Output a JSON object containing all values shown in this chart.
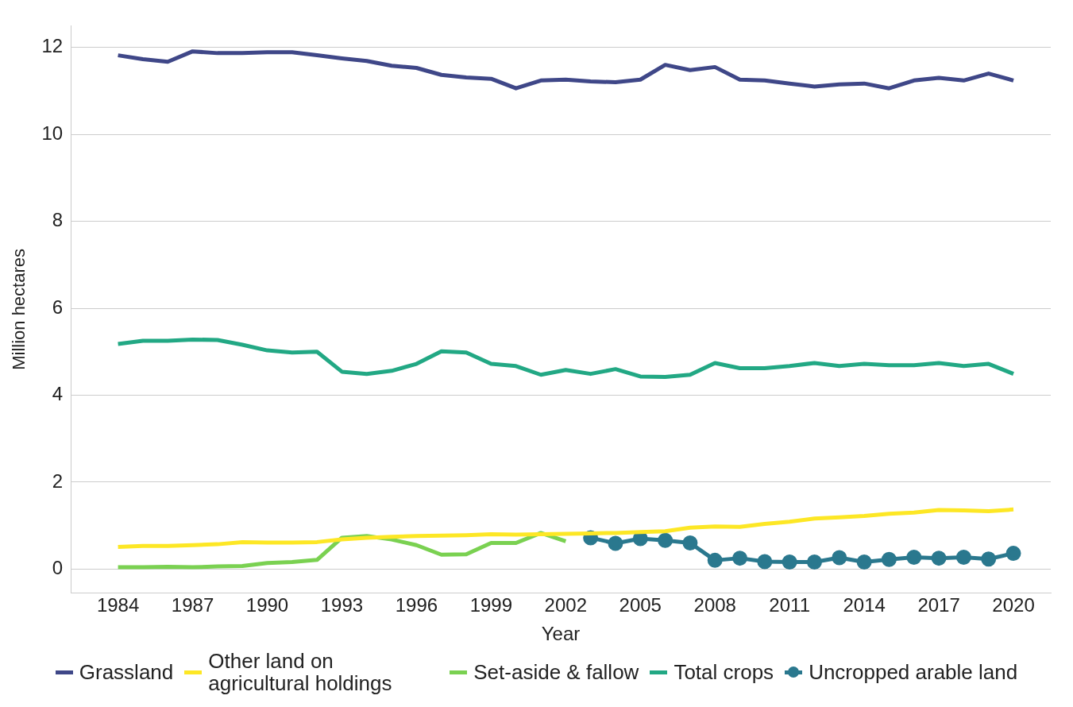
{
  "chart_data": {
    "type": "line",
    "xlabel": "Year",
    "ylabel": "Million hectares",
    "x": [
      1984,
      1985,
      1986,
      1987,
      1988,
      1989,
      1990,
      1991,
      1992,
      1993,
      1994,
      1995,
      1996,
      1997,
      1998,
      1999,
      2000,
      2001,
      2002,
      2003,
      2004,
      2005,
      2006,
      2007,
      2008,
      2009,
      2010,
      2011,
      2012,
      2013,
      2014,
      2015,
      2016,
      2017,
      2018,
      2019,
      2020
    ],
    "series": [
      {
        "name": "Grassland",
        "color": "#3f4788",
        "values": [
          11.82,
          11.73,
          11.67,
          11.91,
          11.87,
          11.87,
          11.89,
          11.89,
          11.82,
          11.75,
          11.69,
          11.58,
          11.53,
          11.37,
          11.31,
          11.28,
          11.06,
          11.24,
          11.26,
          11.22,
          11.2,
          11.26,
          11.6,
          11.48,
          11.55,
          11.26,
          11.24,
          11.17,
          11.1,
          11.15,
          11.17,
          11.06,
          11.24,
          11.3,
          11.24,
          11.4,
          11.24
        ]
      },
      {
        "name": "Other land on agricultural holdings",
        "color": "#fde725",
        "values": [
          0.51,
          0.53,
          0.53,
          0.55,
          0.57,
          0.62,
          0.61,
          0.61,
          0.62,
          0.68,
          0.72,
          0.74,
          0.76,
          0.77,
          0.78,
          0.8,
          0.79,
          0.8,
          0.81,
          0.82,
          0.83,
          0.85,
          0.87,
          0.95,
          0.98,
          0.97,
          1.04,
          1.09,
          1.16,
          1.19,
          1.22,
          1.27,
          1.3,
          1.36,
          1.35,
          1.33,
          1.37
        ]
      },
      {
        "name": "Set-aside & fallow",
        "color": "#7ad151",
        "values": [
          0.04,
          0.04,
          0.05,
          0.04,
          0.06,
          0.07,
          0.14,
          0.16,
          0.21,
          0.72,
          0.76,
          0.68,
          0.55,
          0.33,
          0.34,
          0.6,
          0.6,
          0.83,
          0.64,
          null,
          null,
          null,
          null,
          null,
          null,
          null,
          null,
          null,
          null,
          null,
          null,
          null,
          null,
          null,
          null,
          null,
          null
        ]
      },
      {
        "name": "Total crops",
        "color": "#22a884",
        "values": [
          5.18,
          5.25,
          5.25,
          5.28,
          5.27,
          5.16,
          5.03,
          4.98,
          5.0,
          4.54,
          4.49,
          4.56,
          4.72,
          5.01,
          4.98,
          4.72,
          4.67,
          4.47,
          4.58,
          4.49,
          4.6,
          4.43,
          4.42,
          4.47,
          4.74,
          4.62,
          4.62,
          4.67,
          4.74,
          4.67,
          4.72,
          4.69,
          4.69,
          4.74,
          4.67,
          4.72,
          4.49
        ]
      },
      {
        "name": "Uncropped arable land",
        "color": "#2a788e",
        "marker": "circle",
        "values": [
          null,
          null,
          null,
          null,
          null,
          null,
          null,
          null,
          null,
          null,
          null,
          null,
          null,
          null,
          null,
          null,
          null,
          null,
          null,
          0.72,
          0.59,
          0.7,
          0.66,
          0.6,
          0.2,
          0.25,
          0.17,
          0.16,
          0.16,
          0.26,
          0.16,
          0.22,
          0.27,
          0.25,
          0.27,
          0.23,
          0.36
        ]
      }
    ],
    "xlim": [
      1982.1,
      2021.5
    ],
    "xticks": [
      1984,
      1987,
      1990,
      1993,
      1996,
      1999,
      2002,
      2005,
      2008,
      2011,
      2014,
      2017,
      2020
    ],
    "ylim": [
      -0.55,
      12.5
    ],
    "yticks": [
      0,
      2,
      4,
      6,
      8,
      10,
      12
    ],
    "grid": "y",
    "legend": "bottom",
    "marker": "none",
    "line_style": "solid"
  }
}
